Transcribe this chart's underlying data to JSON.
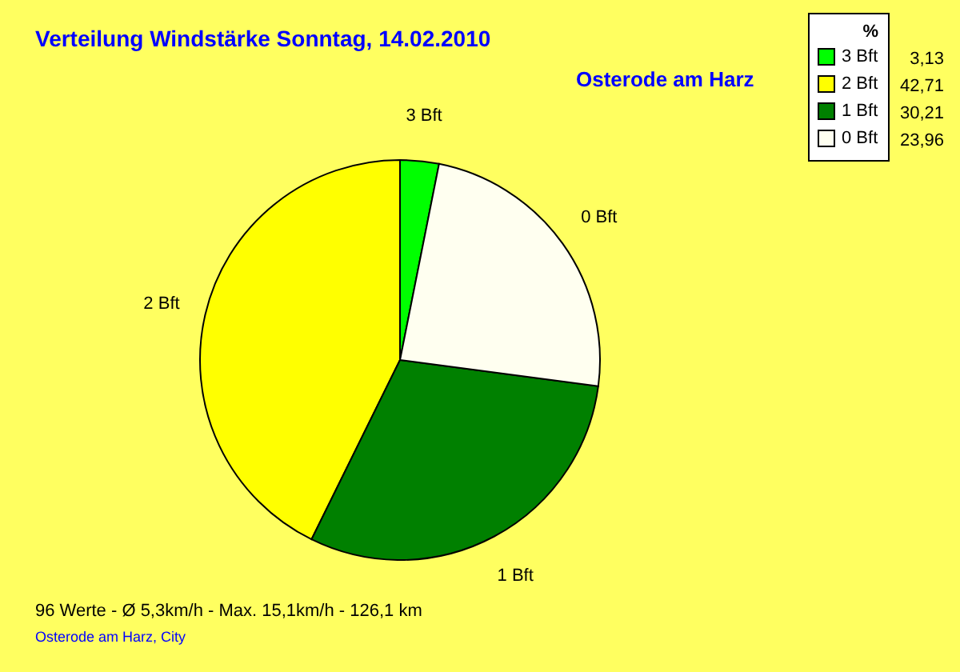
{
  "chart_data": {
    "type": "pie",
    "title": "Verteilung Windstärke  Sonntag, 14.02.2010",
    "subtitle": "Osterode am Harz",
    "legend_title": "%",
    "categories": [
      "3 Bft",
      "2 Bft",
      "1 Bft",
      "0 Bft"
    ],
    "values": [
      3.13,
      42.71,
      30.21,
      23.96
    ],
    "value_labels": [
      "3,13",
      "42,71",
      "30,21",
      "23,96"
    ],
    "colors": [
      "#00ff00",
      "#ffff00",
      "#008000",
      "#fffff0"
    ],
    "legend": "top right",
    "annotations": [
      "96 Werte   -   Ø 5,3km/h  -  Max. 15,1km/h   -   126,1 km",
      "Osterode am Harz, City"
    ]
  }
}
